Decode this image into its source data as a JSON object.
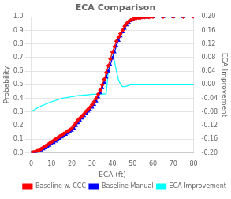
{
  "chart_data": {
    "type": "line",
    "title": "ECA Comparison",
    "xlabel": "ECA (ft)",
    "ylabel": "Probability",
    "y2label": "ECA Improvement",
    "xlim": [
      0,
      80
    ],
    "xticks": [
      0,
      10,
      20,
      30,
      40,
      50,
      60,
      70,
      80
    ],
    "ylim": [
      0.0,
      1.0
    ],
    "yticks": [
      {
        "value": 0.0,
        "label": "0.0"
      },
      0.1,
      0.2,
      0.3,
      0.4,
      0.5,
      0.6,
      0.7,
      0.8,
      0.9,
      {
        "value": 1.0,
        "label": "1.0"
      }
    ],
    "y2lim": [
      -0.2,
      0.2
    ],
    "y2ticks": [
      {
        "value": -0.2,
        "label": "-0.20"
      },
      -0.16,
      -0.12,
      -0.08,
      -0.04,
      {
        "value": 0.0,
        "label": "0.00"
      },
      0.04,
      0.08,
      0.12,
      0.16,
      {
        "value": 0.2,
        "label": "0.20"
      }
    ],
    "grid": "y",
    "legend": "lower right",
    "series": [
      {
        "name": "Baseline w. CCC",
        "color": "red",
        "marker": "diamond",
        "x": [
          0,
          1,
          2,
          3,
          4,
          5,
          6,
          7,
          8,
          9,
          10,
          11,
          12,
          13,
          14,
          15,
          16,
          17,
          18,
          19,
          20,
          21,
          22,
          23,
          24,
          25,
          26,
          27,
          28,
          29,
          30,
          31,
          32,
          33,
          34,
          35,
          36,
          37,
          38,
          39,
          40,
          41,
          42,
          43,
          44,
          45,
          46,
          47,
          48,
          49,
          50,
          51,
          52,
          53,
          54,
          55,
          56,
          57,
          58,
          59,
          60,
          65,
          70,
          75,
          80
        ],
        "values": [
          0.0,
          0.005,
          0.01,
          0.015,
          0.02,
          0.03,
          0.04,
          0.05,
          0.06,
          0.07,
          0.08,
          0.09,
          0.1,
          0.11,
          0.12,
          0.13,
          0.14,
          0.15,
          0.16,
          0.17,
          0.18,
          0.2,
          0.22,
          0.24,
          0.255,
          0.27,
          0.285,
          0.305,
          0.32,
          0.335,
          0.355,
          0.375,
          0.4,
          0.43,
          0.46,
          0.5,
          0.54,
          0.59,
          0.64,
          0.69,
          0.74,
          0.78,
          0.82,
          0.85,
          0.875,
          0.9,
          0.93,
          0.95,
          0.965,
          0.975,
          0.982,
          0.988,
          0.991,
          0.993,
          0.995,
          0.996,
          0.997,
          0.998,
          0.998,
          0.999,
          1.0,
          1.0,
          1.0,
          1.0,
          1.0
        ]
      },
      {
        "name": "Baseline Manual",
        "color": "blue",
        "marker": "triangle",
        "x": [
          0,
          1,
          2,
          3,
          4,
          5,
          6,
          7,
          8,
          9,
          10,
          11,
          12,
          13,
          14,
          15,
          16,
          17,
          18,
          19,
          20,
          21,
          22,
          23,
          24,
          25,
          26,
          27,
          28,
          29,
          30,
          31,
          32,
          33,
          34,
          35,
          36,
          37,
          38,
          39,
          40,
          41,
          42,
          43,
          44,
          45,
          46,
          47,
          48,
          49,
          50,
          51,
          52,
          53,
          54,
          55,
          56,
          57,
          58,
          59,
          60,
          65,
          70,
          75,
          80
        ],
        "values": [
          0.0,
          0.003,
          0.006,
          0.01,
          0.013,
          0.02,
          0.028,
          0.036,
          0.045,
          0.055,
          0.065,
          0.075,
          0.085,
          0.095,
          0.105,
          0.115,
          0.125,
          0.135,
          0.145,
          0.155,
          0.165,
          0.18,
          0.2,
          0.22,
          0.238,
          0.255,
          0.272,
          0.29,
          0.305,
          0.318,
          0.335,
          0.355,
          0.38,
          0.41,
          0.44,
          0.478,
          0.515,
          0.555,
          0.6,
          0.645,
          0.695,
          0.74,
          0.785,
          0.825,
          0.858,
          0.888,
          0.915,
          0.94,
          0.958,
          0.97,
          0.98,
          0.987,
          0.991,
          0.993,
          0.995,
          0.996,
          0.997,
          0.998,
          0.998,
          0.999,
          0.999,
          1.0,
          1.0,
          1.0,
          1.0
        ]
      },
      {
        "name": "ECA Improvement",
        "color": "cyan",
        "axis": "y2",
        "x": [
          0,
          1,
          2,
          3,
          4,
          5,
          6,
          7,
          8,
          9,
          10,
          11,
          12,
          13,
          14,
          15,
          16,
          17,
          18,
          19,
          20,
          21,
          22,
          23,
          24,
          25,
          26,
          27,
          28,
          29,
          30,
          31,
          32,
          33,
          34,
          35,
          36,
          37,
          38,
          39,
          40,
          41,
          42,
          43,
          44,
          45,
          46,
          47,
          48,
          49,
          50,
          55,
          60,
          65,
          70,
          75,
          80
        ],
        "values": [
          -0.08,
          -0.075,
          -0.072,
          -0.068,
          -0.065,
          -0.062,
          -0.06,
          -0.057,
          -0.055,
          -0.052,
          -0.05,
          -0.048,
          -0.046,
          -0.044,
          -0.042,
          -0.04,
          -0.039,
          -0.038,
          -0.037,
          -0.036,
          -0.035,
          -0.034,
          -0.033,
          -0.032,
          -0.031,
          -0.031,
          -0.03,
          -0.03,
          -0.029,
          -0.029,
          -0.028,
          -0.028,
          -0.028,
          -0.028,
          -0.027,
          -0.027,
          -0.027,
          -0.026,
          0.04,
          0.075,
          0.095,
          0.07,
          0.04,
          0.015,
          0.002,
          -0.005,
          -0.005,
          -0.004,
          -0.002,
          0.0,
          0.0,
          0.0,
          0.0,
          0.0,
          0.0,
          0.0,
          0.0
        ]
      }
    ]
  }
}
